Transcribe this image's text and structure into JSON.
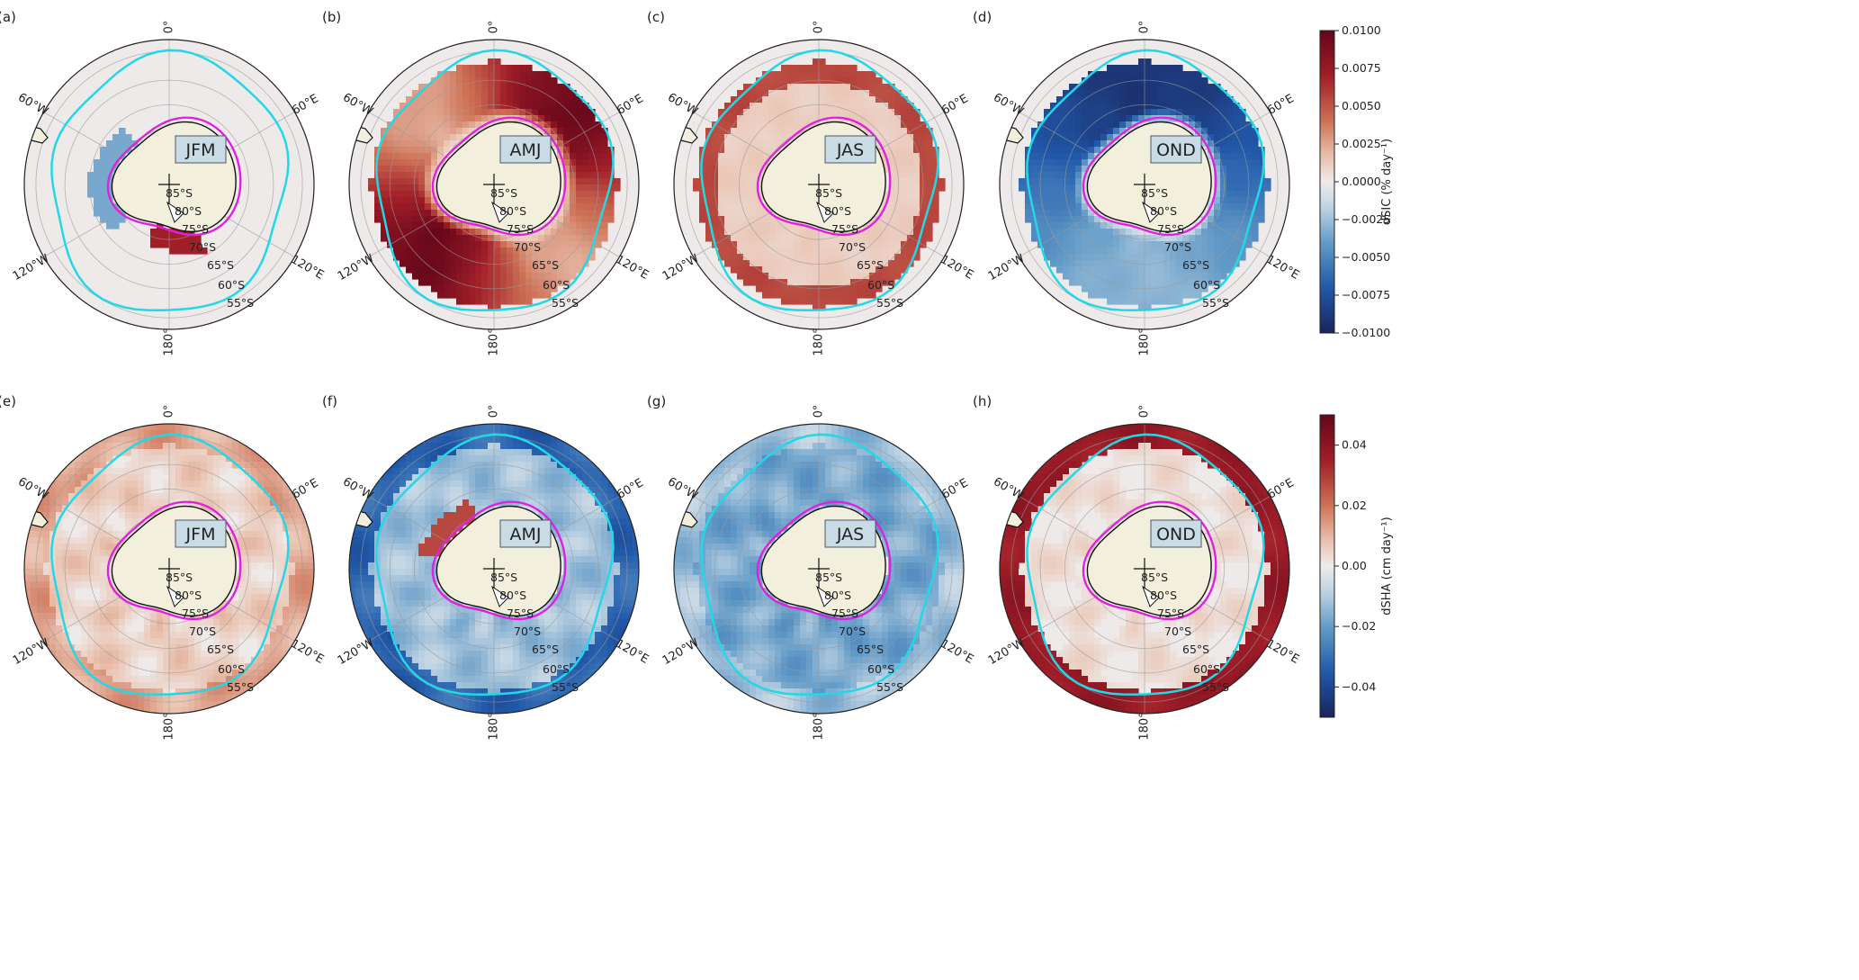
{
  "figure": {
    "panel_labels": [
      "(a)",
      "(b)",
      "(c)",
      "(d)",
      "(e)",
      "(f)",
      "(g)",
      "(h)"
    ],
    "season_labels": [
      "JFM",
      "AMJ",
      "JAS",
      "OND"
    ],
    "longitude_labels": [
      "0°",
      "60°E",
      "120°E",
      "180°",
      "120°W",
      "60°W"
    ],
    "latitude_labels": [
      "85°S",
      "80°S",
      "75°S",
      "70°S",
      "65°S",
      "60°S",
      "55°S"
    ]
  },
  "chart_data": [
    {
      "type": "heatmap",
      "variable": "dSIC",
      "panels": [
        {
          "label": "(a)",
          "season": "JFM",
          "pattern": "near zero; weak positive near Ross Sea coast, weak negative Weddell / Amundsen"
        },
        {
          "label": "(b)",
          "season": "AMJ",
          "pattern": "strong positive ring across sea-ice zone"
        },
        {
          "label": "(c)",
          "season": "JAS",
          "pattern": "positive at outer ice edge, near zero inside"
        },
        {
          "label": "(d)",
          "season": "OND",
          "pattern": "strong negative ring across sea-ice zone"
        }
      ],
      "colorbar": {
        "label": "dSIC (% day⁻¹)",
        "range": [
          -0.01,
          0.01
        ],
        "ticks": [
          "0.0100",
          "0.0075",
          "0.0050",
          "0.0025",
          "0.0000",
          "−0.0025",
          "−0.0050",
          "−0.0075",
          "−0.0100"
        ],
        "colormap": "RdBu_r"
      }
    },
    {
      "type": "heatmap",
      "variable": "dSHA",
      "panels": [
        {
          "label": "(e)",
          "season": "JFM",
          "pattern": "weak positive, patchy"
        },
        {
          "label": "(f)",
          "season": "AMJ",
          "pattern": "negative broadly, positive near Weddell Sea coast"
        },
        {
          "label": "(g)",
          "season": "JAS",
          "pattern": "weak negative, patchy"
        },
        {
          "label": "(h)",
          "season": "OND",
          "pattern": "strong positive outside ice, near zero inside"
        }
      ],
      "colorbar": {
        "label": "dSHA (cm day⁻¹)",
        "range": [
          -0.05,
          0.05
        ],
        "ticks": [
          "0.04",
          "0.02",
          "0.00",
          "−0.02",
          "−0.04"
        ],
        "colormap": "RdBu_r"
      }
    }
  ],
  "colors": {
    "ice_edge_line": "#22d8e6",
    "coastal_line": "#e020e0",
    "land": "#f2efdc",
    "ocean_neutral": "#eeeaea",
    "positive_strong": "#7a0b1d",
    "negative_strong": "#1a3f8f"
  }
}
